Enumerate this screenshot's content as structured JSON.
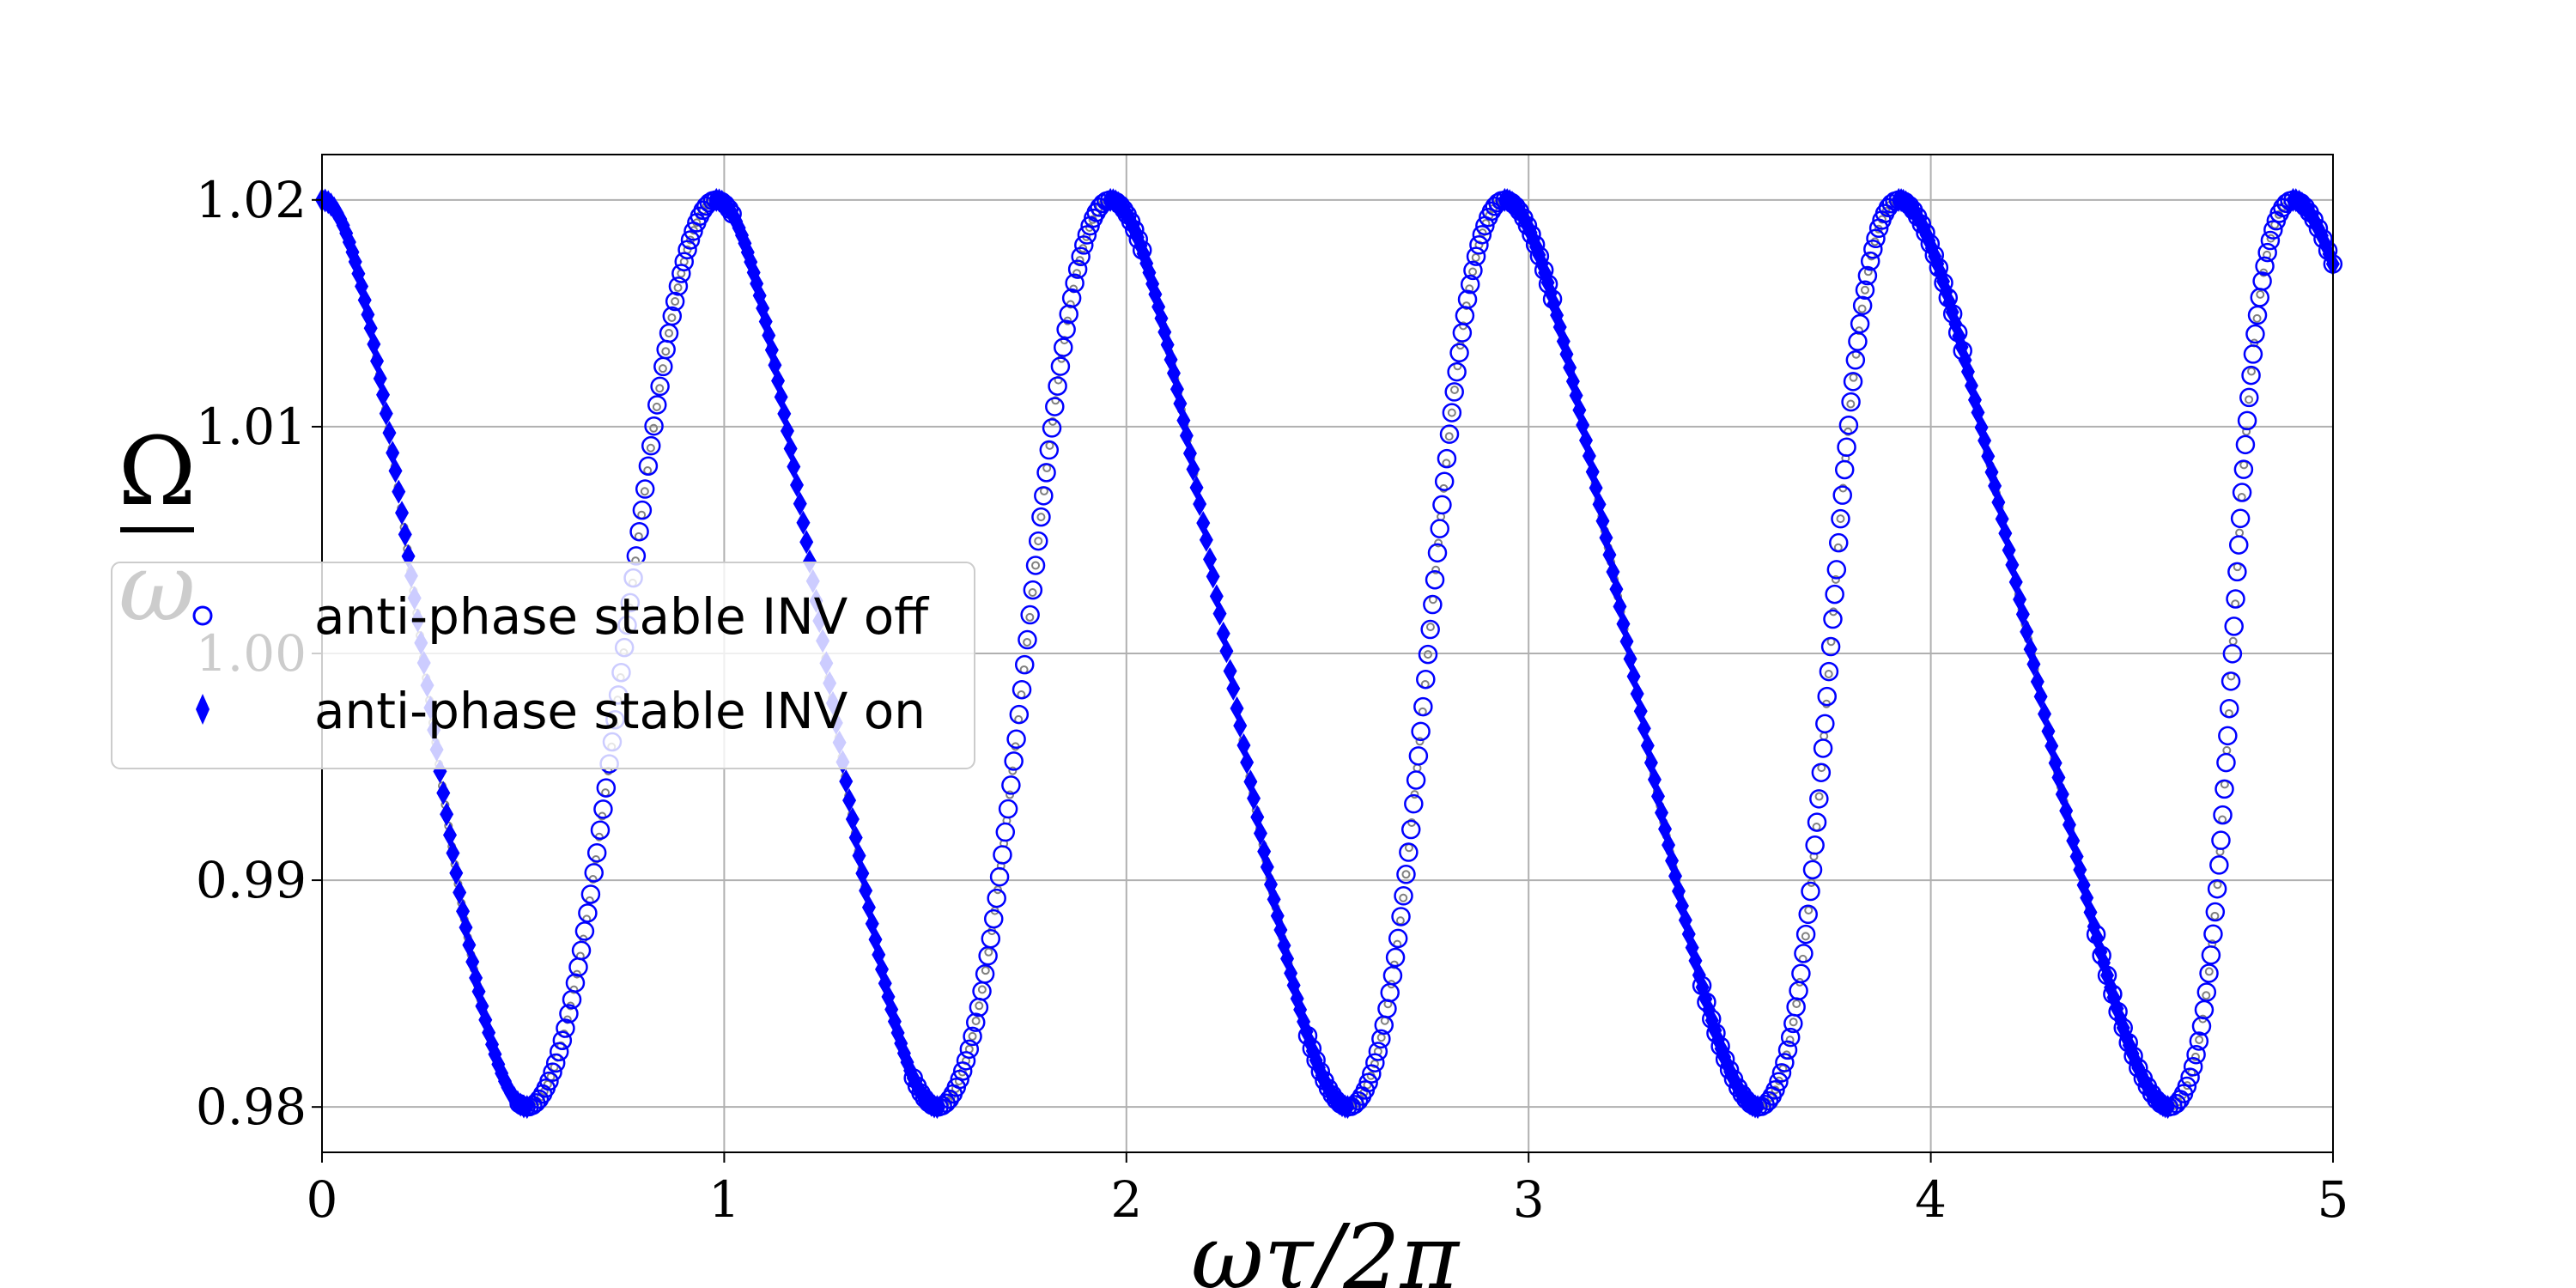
{
  "chart_data": {
    "type": "scatter",
    "title": "",
    "xlabel": "ωτ/2π",
    "ylabel_numerator": "Ω",
    "ylabel_denominator": "ω",
    "xlim": [
      0,
      5
    ],
    "ylim": [
      0.978,
      1.022
    ],
    "xticks": [
      0,
      1,
      2,
      3,
      4,
      5
    ],
    "xtick_labels": [
      "0",
      "1",
      "2",
      "3",
      "4",
      "5"
    ],
    "yticks": [
      0.98,
      0.99,
      1.0,
      1.01,
      1.02
    ],
    "ytick_labels": [
      "0.98",
      "0.99",
      "1.00",
      "1.01",
      "1.02"
    ],
    "grid": true,
    "legend_position": "center-left",
    "model": {
      "description_of_curve": "Omega/omega = 1 + 0.02*cos(2*pi*x*Omega/omega) solution branches",
      "amplitude": 0.02
    },
    "series": [
      {
        "name": "anti-phase stable INV off",
        "marker": "open-circle",
        "color": "#0000ff",
        "segment_ranges": [
          [
            0.49,
            1.02
          ],
          [
            1.47,
            2.04
          ],
          [
            2.45,
            3.06
          ],
          [
            3.43,
            4.08
          ],
          [
            4.41,
            5.0
          ]
        ]
      },
      {
        "name": "anti-phase stable INV on",
        "marker": "filled-diamond",
        "color": "#0000ff",
        "segment_ranges": [
          [
            0.0,
            0.51
          ],
          [
            0.98,
            1.53
          ],
          [
            1.96,
            2.55
          ],
          [
            2.94,
            3.57
          ],
          [
            3.92,
            4.59
          ],
          [
            4.9,
            5.0
          ]
        ]
      },
      {
        "name": "",
        "marker": "small-gray",
        "color": "#808080",
        "segment_ranges": [
          [
            0.0,
            0.49
          ],
          [
            0.51,
            0.98
          ],
          [
            1.02,
            1.47
          ],
          [
            1.53,
            1.96
          ],
          [
            2.04,
            2.45
          ],
          [
            2.55,
            2.94
          ],
          [
            3.06,
            3.43
          ],
          [
            3.57,
            3.92
          ],
          [
            4.08,
            4.41
          ],
          [
            4.59,
            4.9
          ]
        ]
      }
    ],
    "colors": {
      "blue": "#0000ff",
      "gray": "#808080",
      "grid": "#b0b0b0"
    }
  }
}
